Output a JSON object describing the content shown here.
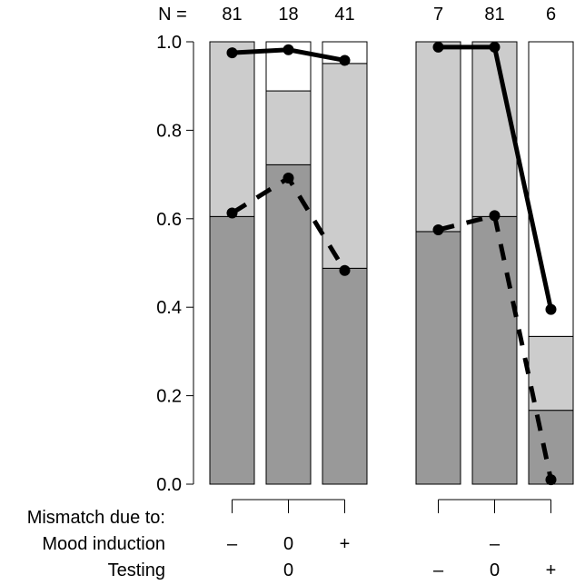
{
  "chart_data": {
    "type": "bar",
    "subtype": "stacked-proportion-with-line-overlay",
    "n_label": "N =",
    "groups": [
      {
        "bars": [
          {
            "n": "81",
            "segments": [
              0.605,
              0.395,
              0.0
            ],
            "solid": 0.975,
            "dashed": 0.613
          },
          {
            "n": "18",
            "segments": [
              0.722,
              0.167,
              0.111
            ],
            "solid": 0.982,
            "dashed": 0.692
          },
          {
            "n": "41",
            "segments": [
              0.488,
              0.463,
              0.049
            ],
            "solid": 0.958,
            "dashed": 0.483
          }
        ],
        "mood_labels": [
          "–",
          "0",
          "+"
        ],
        "testing_label": "0",
        "testing_ticks": [
          "",
          "",
          ""
        ]
      },
      {
        "bars": [
          {
            "n": "7",
            "segments": [
              0.571,
              0.429,
              0.0
            ],
            "solid": 0.988,
            "dashed": 0.575
          },
          {
            "n": "81",
            "segments": [
              0.605,
              0.395,
              0.0
            ],
            "solid": 0.988,
            "dashed": 0.607
          },
          {
            "n": "6",
            "segments": [
              0.167,
              0.167,
              0.666
            ],
            "solid": 0.395,
            "dashed": 0.01
          }
        ],
        "mood_labels": [
          "",
          "–",
          ""
        ],
        "testing_label": "",
        "testing_ticks": [
          "–",
          "0",
          "+"
        ]
      }
    ],
    "segment_colors": [
      "#999999",
      "#cccccc",
      "#ffffff"
    ],
    "ylim": [
      0,
      1
    ],
    "yticks": [
      "0.0",
      "0.2",
      "0.4",
      "0.6",
      "0.8",
      "1.0"
    ],
    "row_labels": {
      "mismatch": "Mismatch due to:",
      "mood": "Mood induction",
      "testing": "Testing"
    }
  }
}
